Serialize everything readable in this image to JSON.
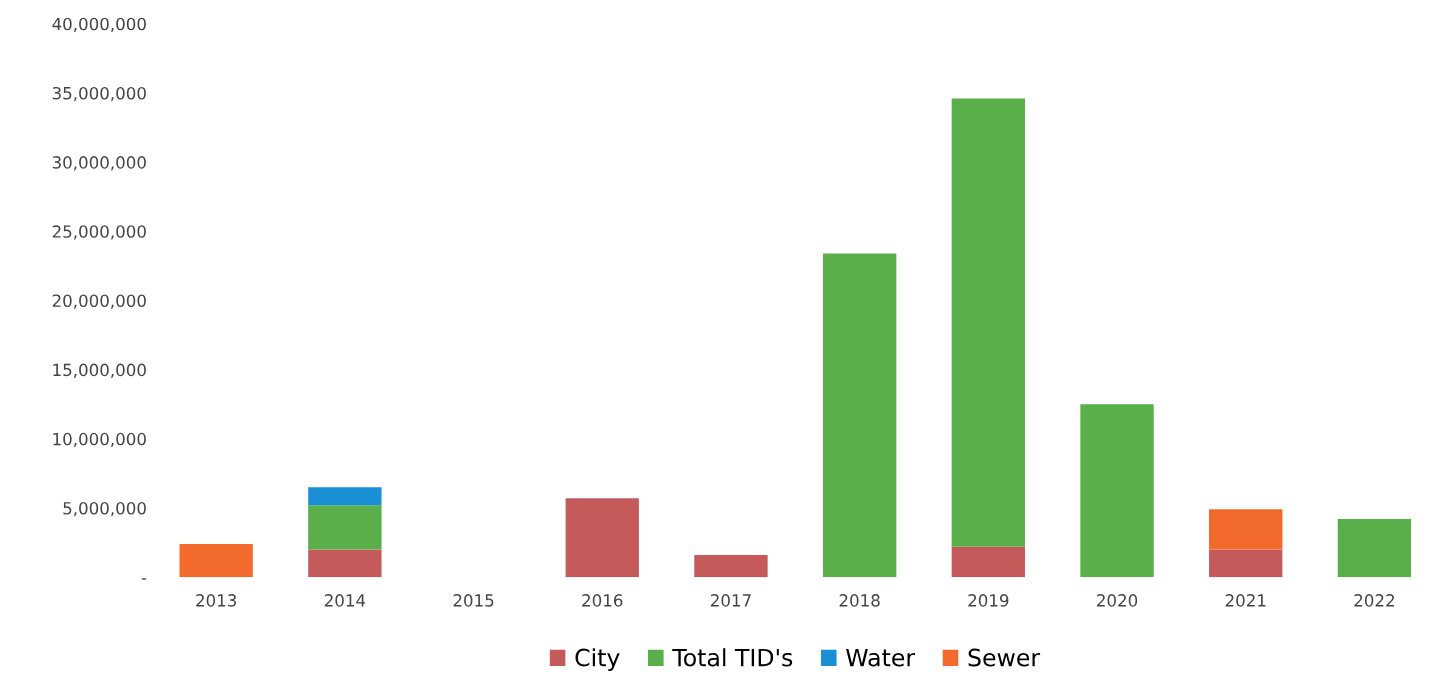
{
  "chart_data": {
    "type": "bar",
    "stacked": true,
    "legend": "bottom",
    "grid": false,
    "categories": [
      "2013",
      "2014",
      "2015",
      "2016",
      "2017",
      "2018",
      "2019",
      "2020",
      "2021",
      "2022"
    ],
    "ylim": [
      0,
      40000000
    ],
    "yticks": [
      {
        "value": 0,
        "label": "-"
      },
      {
        "value": 5000000,
        "label": "5,000,000"
      },
      {
        "value": 10000000,
        "label": "10,000,000"
      },
      {
        "value": 15000000,
        "label": "15,000,000"
      },
      {
        "value": 20000000,
        "label": "20,000,000"
      },
      {
        "value": 25000000,
        "label": "25,000,000"
      },
      {
        "value": 30000000,
        "label": "30,000,000"
      },
      {
        "value": 35000000,
        "label": "35,000,000"
      },
      {
        "value": 40000000,
        "label": "40,000,000"
      }
    ],
    "series": [
      {
        "name": "City",
        "color": "#c55a5a",
        "values": [
          null,
          2000000,
          null,
          5700000,
          1600000,
          null,
          2200000,
          null,
          2000000,
          null
        ]
      },
      {
        "name": "Total TID's",
        "color": "#5aaf4a",
        "values": [
          null,
          3200000,
          null,
          null,
          null,
          23400000,
          32400000,
          12500000,
          null,
          4200000
        ]
      },
      {
        "name": "Water",
        "color": "#1a8fd6",
        "values": [
          null,
          1300000,
          null,
          null,
          null,
          null,
          null,
          null,
          null,
          null
        ]
      },
      {
        "name": "Sewer",
        "color": "#f26b2c",
        "values": [
          2400000,
          null,
          null,
          null,
          null,
          null,
          null,
          null,
          2900000,
          null
        ]
      }
    ]
  }
}
